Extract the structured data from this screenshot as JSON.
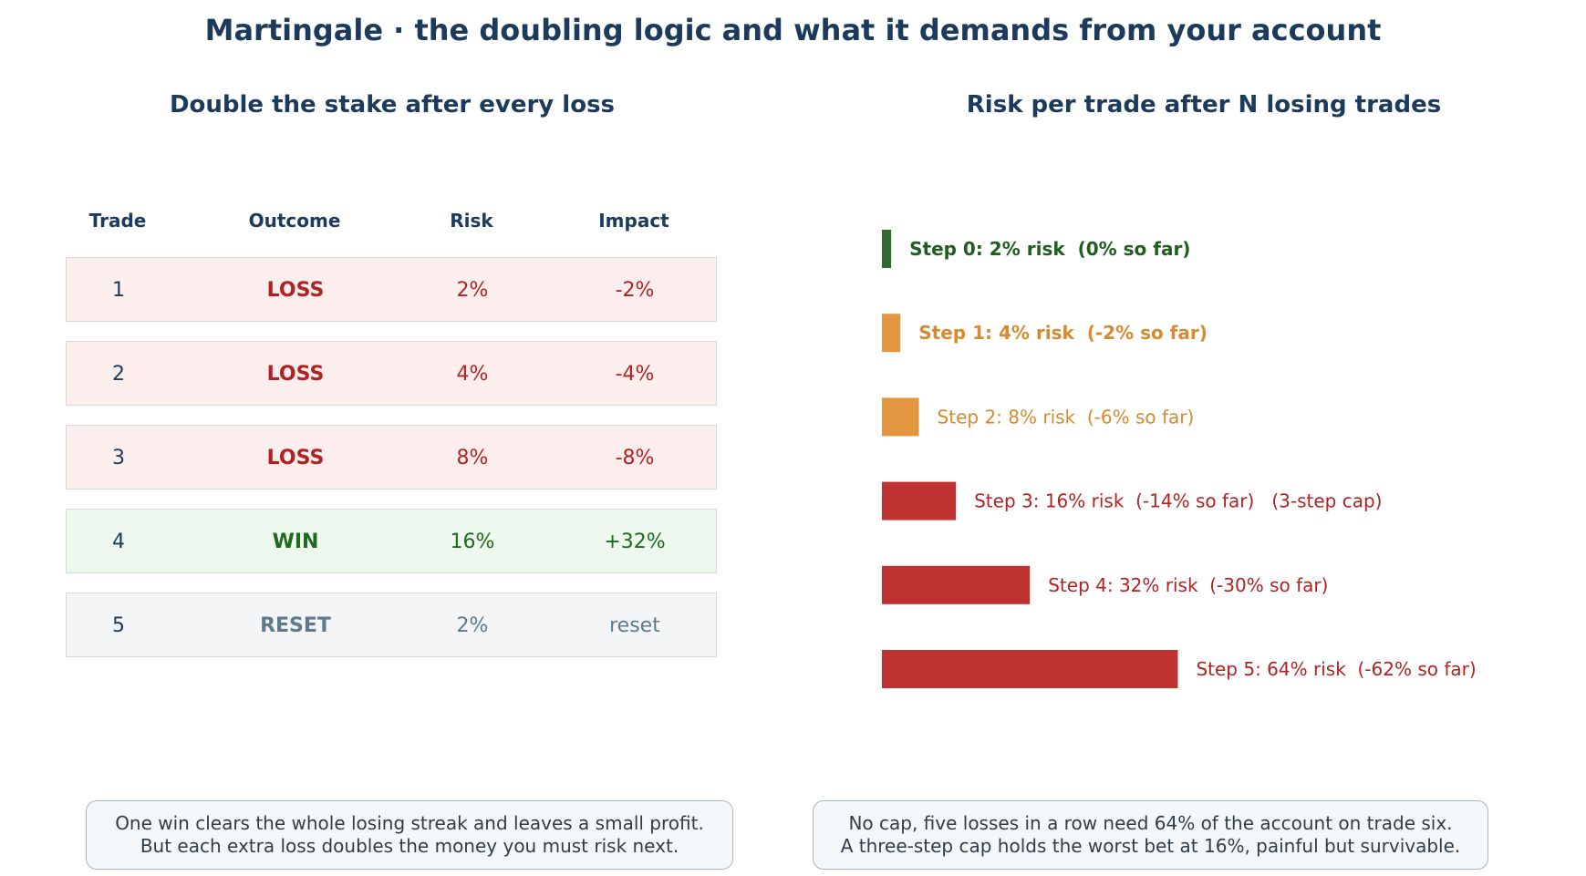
{
  "title": "Martingale · the doubling logic and what it demands from your account",
  "table_panel": {
    "subtitle": "Double the stake after every loss",
    "headers": [
      "Trade",
      "Outcome",
      "Risk",
      "Impact"
    ],
    "rows": [
      {
        "trade": "1",
        "outcome": "LOSS",
        "risk": "2%",
        "impact": "-2%",
        "kind": "loss"
      },
      {
        "trade": "2",
        "outcome": "LOSS",
        "risk": "4%",
        "impact": "-4%",
        "kind": "loss"
      },
      {
        "trade": "3",
        "outcome": "LOSS",
        "risk": "8%",
        "impact": "-8%",
        "kind": "loss"
      },
      {
        "trade": "4",
        "outcome": "WIN",
        "risk": "16%",
        "impact": "+32%",
        "kind": "win"
      },
      {
        "trade": "5",
        "outcome": "RESET",
        "risk": "2%",
        "impact": "reset",
        "kind": "reset"
      }
    ],
    "note_line1": "One win clears the whole losing streak and leaves a small profit.",
    "note_line2": "But each extra loss doubles the money you must risk next."
  },
  "chart_data": {
    "type": "bar",
    "orientation": "horizontal",
    "title": "Risk per trade after N losing trades",
    "categories": [
      "Step 0",
      "Step 1",
      "Step 2",
      "Step 3",
      "Step 4",
      "Step 5"
    ],
    "values": [
      2,
      4,
      8,
      16,
      32,
      64
    ],
    "cumulative": [
      0,
      -2,
      -6,
      -14,
      -30,
      -62
    ],
    "labels": [
      "Step 0: 2% risk  (0% so far)",
      "Step 1: 4% risk  (-2% so far)",
      "Step 2: 8% risk  (-6% so far)",
      "Step 3: 16% risk  (-14% so far)   (3-step cap)",
      "Step 4: 32% risk  (-30% so far)",
      "Step 5: 64% risk  (-62% so far)"
    ],
    "colors": [
      "#2e6b30",
      "#e39640",
      "#e39640",
      "#c03232",
      "#c03232",
      "#c03232"
    ],
    "label_colors": [
      "#1e5e1e",
      "#d88a2e",
      "#d88a2e",
      "#b22222",
      "#b22222",
      "#b22222"
    ],
    "label_bold": [
      true,
      true,
      false,
      false,
      false,
      false
    ],
    "xlabel": "",
    "ylabel": "",
    "grid": false,
    "note_line1": "No cap, five losses in a row need 64% of the account on trade six.",
    "note_line2": "A three-step cap holds the worst bet at 16%, painful but survivable."
  }
}
